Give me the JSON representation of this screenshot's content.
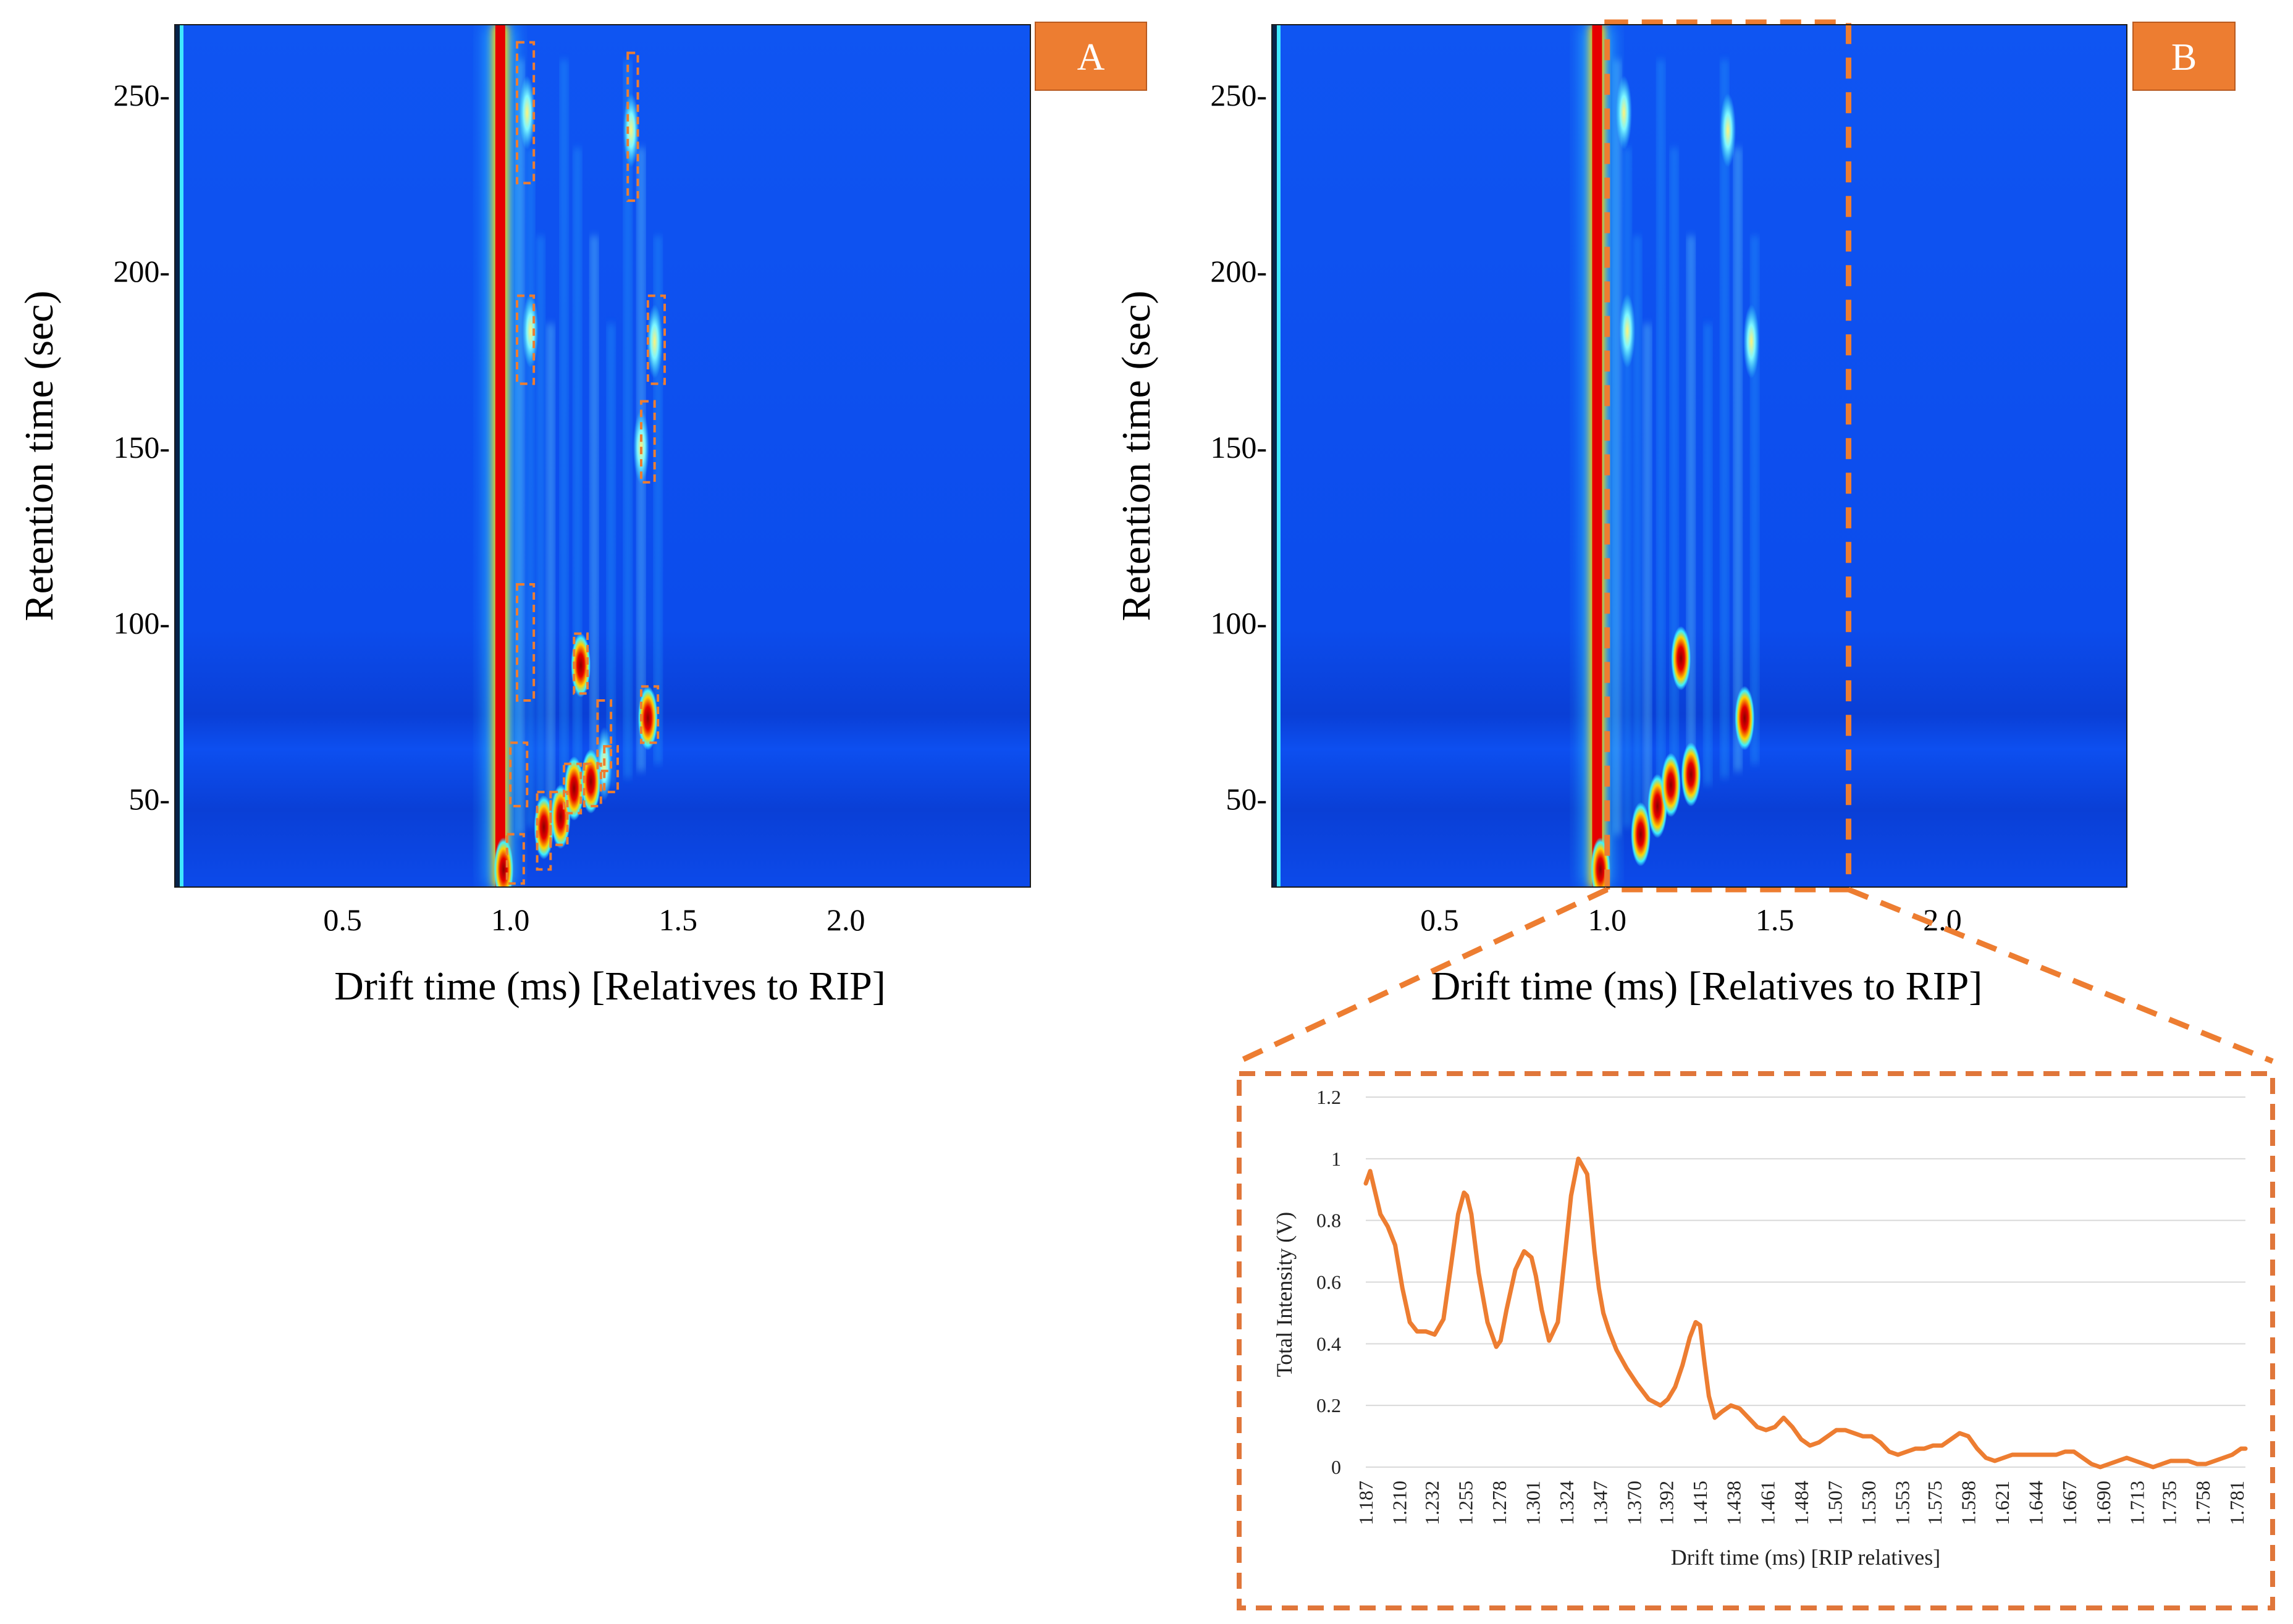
{
  "chart_data": [
    {
      "panel": "A",
      "type": "heatmap",
      "xlabel": "Drift time (ms) [Relatives to RIP]",
      "ylabel": "Retention time (sec)",
      "xlim": [
        0.0,
        2.55
      ],
      "ylim": [
        25,
        270
      ],
      "xticks": [
        "0.5",
        "1.0",
        "1.5",
        "2.0"
      ],
      "xtick_values": [
        0.5,
        1.0,
        1.5,
        2.0
      ],
      "yticks": [
        "250-",
        "200-",
        "150-",
        "100-",
        "50-"
      ],
      "ytick_values": [
        250,
        200,
        150,
        100,
        50
      ],
      "rip_drift_time": 0.97,
      "peaks": [
        {
          "x": 0.98,
          "y": 30,
          "intensity": 1.0
        },
        {
          "x": 1.1,
          "y": 42,
          "intensity": 1.0
        },
        {
          "x": 1.15,
          "y": 45,
          "intensity": 0.9
        },
        {
          "x": 1.19,
          "y": 53,
          "intensity": 0.85
        },
        {
          "x": 1.24,
          "y": 55,
          "intensity": 0.85
        },
        {
          "x": 1.28,
          "y": 60,
          "intensity": 0.7
        },
        {
          "x": 1.21,
          "y": 88,
          "intensity": 0.95
        },
        {
          "x": 1.41,
          "y": 73,
          "intensity": 1.0
        },
        {
          "x": 1.06,
          "y": 183,
          "intensity": 0.7
        },
        {
          "x": 1.05,
          "y": 245,
          "intensity": 0.6
        },
        {
          "x": 1.36,
          "y": 240,
          "intensity": 0.5
        },
        {
          "x": 1.43,
          "y": 180,
          "intensity": 0.45
        },
        {
          "x": 1.39,
          "y": 150,
          "intensity": 0.4
        }
      ],
      "marked_regions": [
        {
          "x0": 1.02,
          "x1": 1.07,
          "y0": 225,
          "y1": 265
        },
        {
          "x0": 1.35,
          "x1": 1.38,
          "y0": 220,
          "y1": 262
        },
        {
          "x0": 1.02,
          "x1": 1.07,
          "y0": 168,
          "y1": 193
        },
        {
          "x0": 1.41,
          "x1": 1.46,
          "y0": 168,
          "y1": 193
        },
        {
          "x0": 1.39,
          "x1": 1.43,
          "y0": 140,
          "y1": 163
        },
        {
          "x0": 1.02,
          "x1": 1.07,
          "y0": 78,
          "y1": 111
        },
        {
          "x0": 1.19,
          "x1": 1.23,
          "y0": 80,
          "y1": 97
        },
        {
          "x0": 1.39,
          "x1": 1.44,
          "y0": 66,
          "y1": 82
        },
        {
          "x0": 1.26,
          "x1": 1.3,
          "y0": 58,
          "y1": 78
        },
        {
          "x0": 1.28,
          "x1": 1.32,
          "y0": 52,
          "y1": 65
        },
        {
          "x0": 1.22,
          "x1": 1.27,
          "y0": 48,
          "y1": 60
        },
        {
          "x0": 1.16,
          "x1": 1.21,
          "y0": 46,
          "y1": 60
        },
        {
          "x0": 1.12,
          "x1": 1.17,
          "y0": 37,
          "y1": 52
        },
        {
          "x0": 1.08,
          "x1": 1.12,
          "y0": 30,
          "y1": 52
        },
        {
          "x0": 1.0,
          "x1": 1.05,
          "y0": 48,
          "y1": 66
        },
        {
          "x0": 0.99,
          "x1": 1.04,
          "y0": 26,
          "y1": 40
        }
      ]
    },
    {
      "panel": "B",
      "type": "heatmap",
      "xlabel": "Drift time (ms) [Relatives to RIP]",
      "ylabel": "Retention time (sec)",
      "xlim": [
        0.0,
        2.55
      ],
      "ylim": [
        25,
        270
      ],
      "xticks": [
        "0.5",
        "1.0",
        "1.5",
        "2.0"
      ],
      "xtick_values": [
        0.5,
        1.0,
        1.5,
        2.0
      ],
      "yticks": [
        "250-",
        "200-",
        "150-",
        "100-",
        "50-"
      ],
      "ytick_values": [
        250,
        200,
        150,
        100,
        50
      ],
      "rip_drift_time": 0.97,
      "peaks": [
        {
          "x": 0.98,
          "y": 30,
          "intensity": 1.0
        },
        {
          "x": 1.1,
          "y": 40,
          "intensity": 1.0
        },
        {
          "x": 1.15,
          "y": 48,
          "intensity": 0.9
        },
        {
          "x": 1.19,
          "y": 54,
          "intensity": 0.85
        },
        {
          "x": 1.25,
          "y": 57,
          "intensity": 0.85
        },
        {
          "x": 1.22,
          "y": 90,
          "intensity": 0.95
        },
        {
          "x": 1.41,
          "y": 73,
          "intensity": 1.0
        },
        {
          "x": 1.06,
          "y": 183,
          "intensity": 0.7
        },
        {
          "x": 1.05,
          "y": 245,
          "intensity": 0.6
        },
        {
          "x": 1.36,
          "y": 240,
          "intensity": 0.5
        },
        {
          "x": 1.43,
          "y": 180,
          "intensity": 0.45
        }
      ],
      "zoom_region": {
        "x0": 1.0,
        "x1": 1.72,
        "y0": 25,
        "y1": 270
      }
    },
    {
      "panel": "B-inset",
      "type": "line",
      "xlabel": "Drift time (ms) [RIP relatives]",
      "ylabel": "Total Intensity (V)",
      "ylim": [
        0,
        1.2
      ],
      "yticks": [
        "0",
        "0.2",
        "0.4",
        "0.6",
        "0.8",
        "1",
        "1.2"
      ],
      "ytick_values": [
        0,
        0.2,
        0.4,
        0.6,
        0.8,
        1.0,
        1.2
      ],
      "xlim": [
        1.187,
        1.787
      ],
      "xticks": [
        "1.187",
        "1.210",
        "1.232",
        "1.255",
        "1.278",
        "1.301",
        "1.324",
        "1.347",
        "1.370",
        "1.392",
        "1.415",
        "1.438",
        "1.461",
        "1.484",
        "1.507",
        "1.530",
        "1.553",
        "1.575",
        "1.598",
        "1.621",
        "1.644",
        "1.667",
        "1.690",
        "1.713",
        "1.735",
        "1.758",
        "1.781"
      ],
      "color": "#ED7D31",
      "series": [
        {
          "name": "Total Intensity",
          "x": [
            1.187,
            1.19,
            1.193,
            1.197,
            1.202,
            1.207,
            1.212,
            1.217,
            1.222,
            1.228,
            1.234,
            1.24,
            1.245,
            1.25,
            1.254,
            1.256,
            1.259,
            1.264,
            1.27,
            1.276,
            1.279,
            1.283,
            1.289,
            1.295,
            1.3,
            1.303,
            1.307,
            1.312,
            1.318,
            1.322,
            1.327,
            1.332,
            1.338,
            1.343,
            1.346,
            1.349,
            1.353,
            1.358,
            1.365,
            1.372,
            1.38,
            1.388,
            1.393,
            1.398,
            1.403,
            1.408,
            1.412,
            1.415,
            1.418,
            1.421,
            1.425,
            1.43,
            1.436,
            1.442,
            1.448,
            1.454,
            1.46,
            1.466,
            1.472,
            1.478,
            1.484,
            1.49,
            1.496,
            1.502,
            1.508,
            1.514,
            1.52,
            1.526,
            1.532,
            1.538,
            1.544,
            1.55,
            1.556,
            1.562,
            1.568,
            1.574,
            1.58,
            1.586,
            1.592,
            1.598,
            1.604,
            1.61,
            1.616,
            1.622,
            1.628,
            1.634,
            1.64,
            1.646,
            1.652,
            1.658,
            1.664,
            1.67,
            1.676,
            1.682,
            1.688,
            1.694,
            1.7,
            1.706,
            1.712,
            1.718,
            1.724,
            1.73,
            1.736,
            1.742,
            1.748,
            1.754,
            1.76,
            1.766,
            1.772,
            1.778,
            1.784,
            1.787
          ],
          "values": [
            0.92,
            0.96,
            0.9,
            0.82,
            0.78,
            0.72,
            0.58,
            0.47,
            0.44,
            0.44,
            0.43,
            0.48,
            0.65,
            0.82,
            0.89,
            0.88,
            0.82,
            0.63,
            0.47,
            0.39,
            0.41,
            0.51,
            0.64,
            0.7,
            0.68,
            0.62,
            0.51,
            0.41,
            0.47,
            0.65,
            0.88,
            1.0,
            0.95,
            0.7,
            0.58,
            0.5,
            0.44,
            0.38,
            0.32,
            0.27,
            0.22,
            0.2,
            0.22,
            0.26,
            0.33,
            0.42,
            0.47,
            0.46,
            0.34,
            0.23,
            0.16,
            0.18,
            0.2,
            0.19,
            0.16,
            0.13,
            0.12,
            0.13,
            0.16,
            0.13,
            0.09,
            0.07,
            0.08,
            0.1,
            0.12,
            0.12,
            0.11,
            0.1,
            0.1,
            0.08,
            0.05,
            0.04,
            0.05,
            0.06,
            0.06,
            0.07,
            0.07,
            0.09,
            0.11,
            0.1,
            0.06,
            0.03,
            0.02,
            0.03,
            0.04,
            0.04,
            0.04,
            0.04,
            0.04,
            0.04,
            0.05,
            0.05,
            0.03,
            0.01,
            0.0,
            0.01,
            0.02,
            0.03,
            0.02,
            0.01,
            0.0,
            0.01,
            0.02,
            0.02,
            0.02,
            0.01,
            0.01,
            0.02,
            0.03,
            0.04,
            0.06,
            0.06
          ]
        }
      ]
    }
  ],
  "colors": {
    "heatmap_background": "#0d4ff0",
    "rip_red": "#e60000",
    "accent_orange": "#ED7D31",
    "inset_border": "#E0763A"
  }
}
